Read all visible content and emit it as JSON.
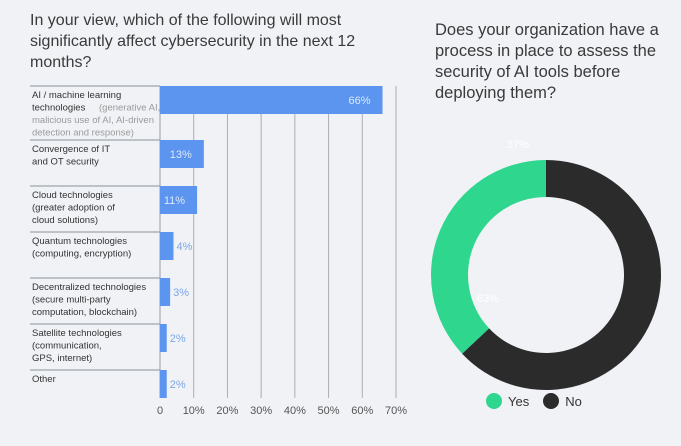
{
  "chart_data": [
    {
      "type": "bar",
      "orientation": "horizontal",
      "title": "In your view, which of the following will most significantly affect cybersecurity in the next 12 months?",
      "categories": [
        {
          "main": [
            "AI / machine learning",
            "technologies"
          ],
          "sub": "(generative AI, malicious use of AI, AI-driven detection and response)"
        },
        {
          "main": [
            "Convergence of IT",
            "and OT security"
          ]
        },
        {
          "main": [
            "Cloud technologies",
            "(greater adoption of",
            "cloud solutions)"
          ]
        },
        {
          "main": [
            "Quantum technologies",
            "(computing, encryption)"
          ]
        },
        {
          "main": [
            "Decentralized technologies",
            "(secure multi-party",
            "computation, blockchain)"
          ]
        },
        {
          "main": [
            "Satellite technologies",
            "(communication,",
            "GPS, internet)"
          ]
        },
        {
          "main": [
            "Other"
          ]
        }
      ],
      "values": [
        66,
        13,
        11,
        4,
        3,
        2,
        2
      ],
      "data_labels": [
        "66%",
        "13%",
        "11%",
        "4%",
        "3%",
        "2%",
        "2%"
      ],
      "xlim": [
        0,
        70
      ],
      "xticks": [
        "0",
        "10%",
        "20%",
        "30%",
        "40%",
        "50%",
        "60%",
        "70%"
      ],
      "grid": true,
      "color": "#5b95ef"
    },
    {
      "type": "pie",
      "donut": true,
      "title": "Does your organization have a process in place to assess the security of AI tools before deploying them?",
      "series": [
        {
          "name": "Yes",
          "value": 37,
          "label": "37%",
          "color": "#2fd68e"
        },
        {
          "name": "No",
          "value": 63,
          "label": "63%",
          "color": "#2b2b2b"
        }
      ],
      "legend": "bottom"
    }
  ]
}
